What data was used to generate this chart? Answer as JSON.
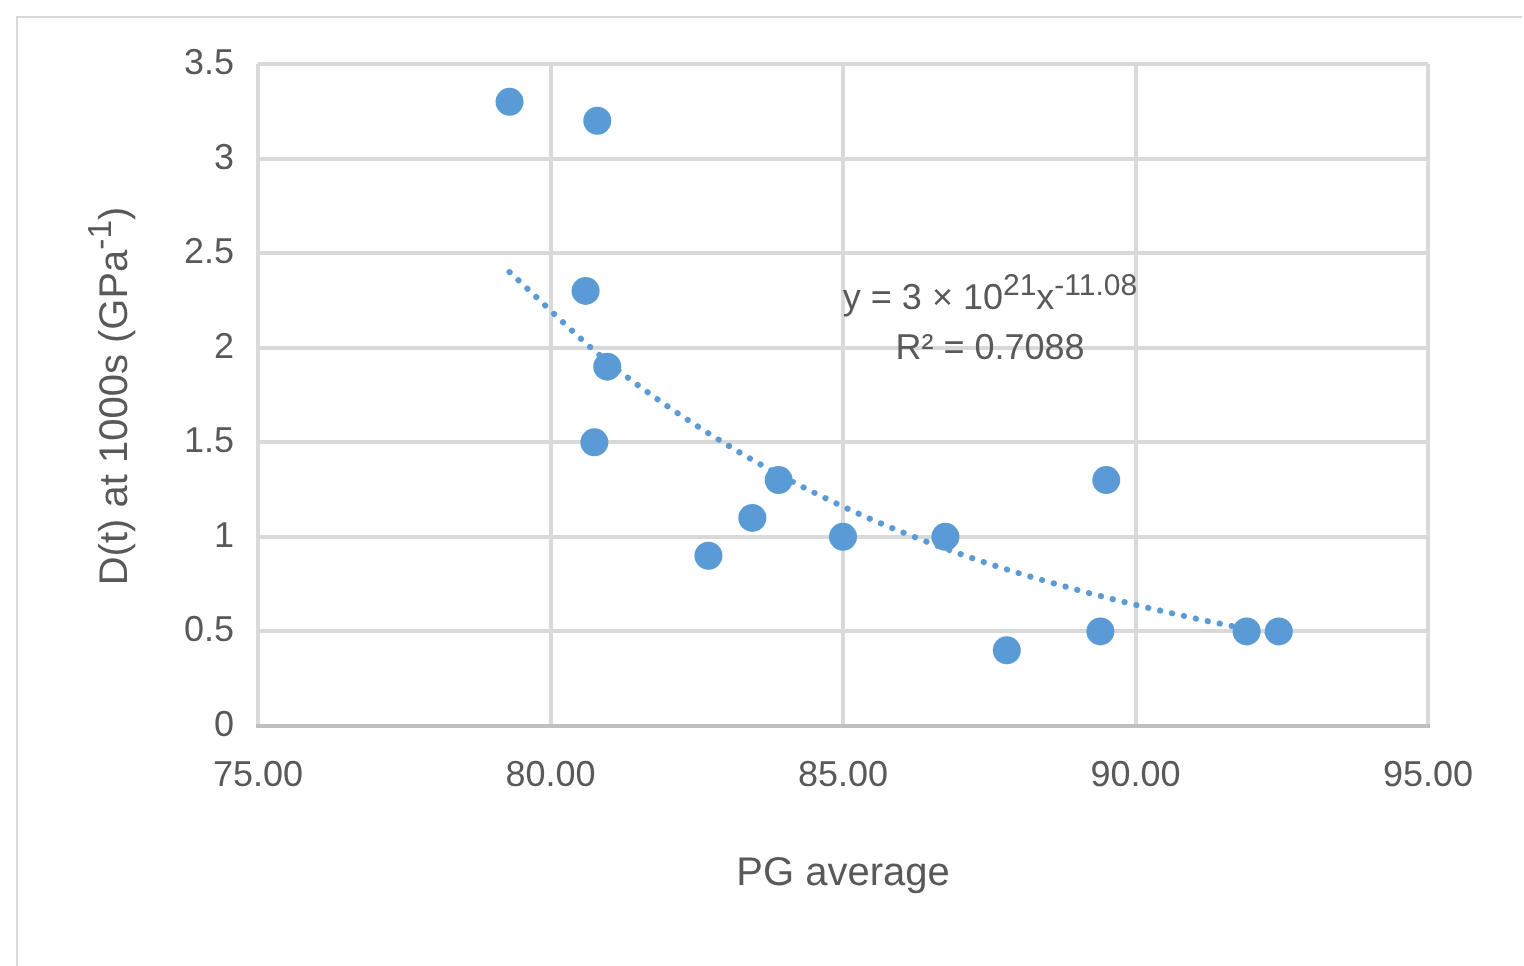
{
  "chart_data": {
    "type": "scatter",
    "xlabel": "PG average",
    "ylabel": "D(t) at 1000s (GPa$^{-1}$)",
    "annotations": [
      "y = 3 × 10$^{21}$x$^{-11.08}$",
      "R² = 0.7088"
    ],
    "xlim": [
      75,
      95
    ],
    "xticks": [
      {
        "value": 75,
        "label": "75.00"
      },
      {
        "value": 80,
        "label": "80.00"
      },
      {
        "value": 85,
        "label": "85.00"
      },
      {
        "value": 90,
        "label": "90.00"
      },
      {
        "value": 95,
        "label": "95.00"
      }
    ],
    "ylim": [
      0,
      3.5
    ],
    "yticks": [
      0,
      0.5,
      1,
      1.5,
      2,
      2.5,
      3,
      3.5
    ],
    "grid": true,
    "legend": false,
    "series": [
      {
        "color": "#5b9bd5",
        "marker": "circle",
        "x": [
          79.3,
          80.8,
          80.6,
          80.97,
          80.75,
          82.7,
          83.45,
          83.9,
          85.0,
          86.75,
          87.8,
          89.4,
          89.5,
          91.9,
          92.45
        ],
        "values": [
          3.3,
          3.2,
          2.3,
          1.9,
          1.5,
          0.9,
          1.1,
          1.3,
          1.0,
          1.0,
          0.4,
          0.5,
          1.3,
          0.5,
          0.5
        ]
      },
      {
        "type": "line",
        "color": "#5b9bd5",
        "marker": "none",
        "line_style": "dotted",
        "x": [
          79.3,
          81,
          83,
          85,
          87,
          89,
          91,
          92.45
        ],
        "values": [
          2.4,
          1.92,
          1.49,
          1.16,
          0.91,
          0.72,
          0.57,
          0.48
        ]
      }
    ]
  }
}
